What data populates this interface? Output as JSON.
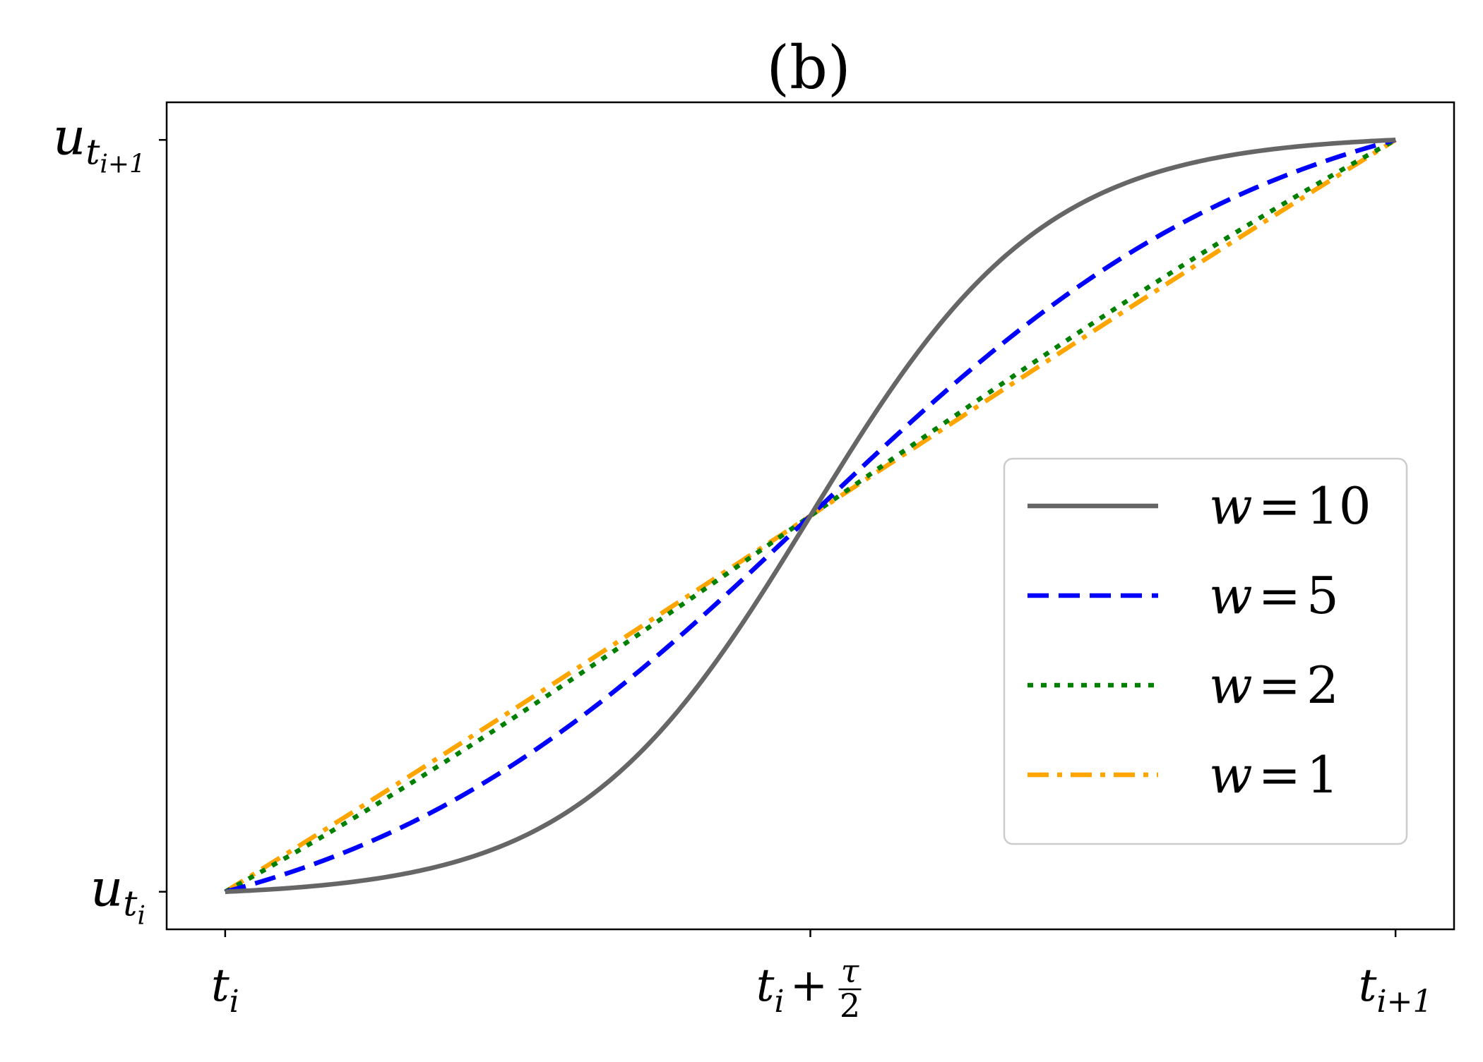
{
  "chart_data": {
    "type": "line",
    "title": "(b)",
    "xlabel": "",
    "ylabel": "",
    "xlim": [
      -0.05,
      1.05
    ],
    "ylim": [
      -0.05,
      1.05
    ],
    "grid": false,
    "legend_position": "center-right",
    "x_ticks": [
      {
        "value": 0,
        "label": "ti",
        "base": "t",
        "sub": "i"
      },
      {
        "value": 0.5,
        "label": "ti + τ/2",
        "base": "t",
        "sub": "i",
        "plus": "+",
        "frac_num": "τ",
        "frac_den": "2"
      },
      {
        "value": 1,
        "label": "ti+1",
        "base": "t",
        "sub": "i+1"
      }
    ],
    "y_ticks": [
      {
        "value": 0,
        "label": "u_ti",
        "base": "u",
        "sub": "t",
        "subsub": "i"
      },
      {
        "value": 1,
        "label": "u_ti+1",
        "base": "u",
        "sub": "t",
        "subsub": "i+1"
      }
    ],
    "x": [
      0,
      0.05,
      0.1,
      0.15,
      0.2,
      0.25,
      0.3,
      0.35,
      0.4,
      0.45,
      0.5,
      0.55,
      0.6,
      0.65,
      0.7,
      0.75,
      0.8,
      0.85,
      0.9,
      0.95,
      1
    ],
    "series": [
      {
        "name": "w = 10",
        "w": 10,
        "color": "#666666",
        "dash": "solid",
        "values": [
          0,
          0.0001,
          0.0002,
          0.0006,
          0.0016,
          0.0043,
          0.0118,
          0.0318,
          0.0833,
          0.2064,
          0.5,
          0.7936,
          0.9167,
          0.9682,
          0.9882,
          0.9957,
          0.9984,
          0.9994,
          0.9998,
          0.9999,
          1
        ]
      },
      {
        "name": "w = 5",
        "w": 5,
        "color": "#0000ff",
        "dash": "dashed",
        "values": [
          0,
          0.0042,
          0.0104,
          0.0192,
          0.0335,
          0.0573,
          0.0969,
          0.1616,
          0.2609,
          0.3965,
          0.5,
          0.6035,
          0.7391,
          0.8384,
          0.9031,
          0.9427,
          0.9665,
          0.9808,
          0.9896,
          0.9958,
          1
        ]
      },
      {
        "name": "w = 2",
        "w": 2,
        "color": "#008000",
        "dash": "dotted",
        "values": [
          0,
          0.0278,
          0.0586,
          0.093,
          0.1313,
          0.1739,
          0.2213,
          0.2737,
          0.3312,
          0.3937,
          0.5,
          0.6063,
          0.6688,
          0.7263,
          0.7787,
          0.8261,
          0.8687,
          0.907,
          0.9414,
          0.9722,
          1
        ]
      },
      {
        "name": "w = 1",
        "w": 1,
        "color": "#ffa500",
        "dash": "dashdot",
        "values": [
          0,
          0.0557,
          0.1114,
          0.1666,
          0.2214,
          0.2757,
          0.3293,
          0.3821,
          0.4337,
          0.4842,
          0.5,
          0.5158,
          0.5663,
          0.6179,
          0.6707,
          0.7243,
          0.7786,
          0.8334,
          0.8886,
          0.9443,
          1
        ]
      }
    ],
    "legend": [
      {
        "var": "w",
        "eq": "=",
        "val": "10"
      },
      {
        "var": "w",
        "eq": "=",
        "val": "5"
      },
      {
        "var": "w",
        "eq": "=",
        "val": "2"
      },
      {
        "var": "w",
        "eq": "=",
        "val": "1"
      }
    ]
  }
}
